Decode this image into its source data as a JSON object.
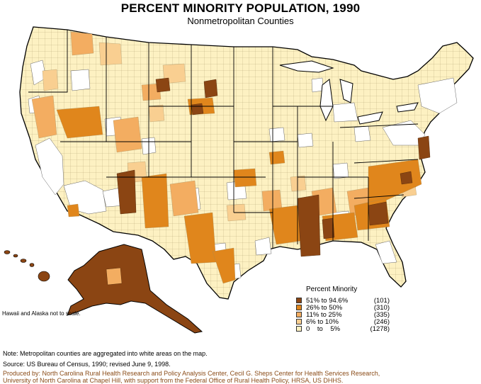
{
  "title": "PERCENT MINORITY POPULATION, 1990",
  "subtitle": "Nonmetropolitan Counties",
  "legend": {
    "title": "Percent Minority",
    "items": [
      {
        "range": "51% to 94.6%",
        "count": "(101)",
        "color": "#8b4513"
      },
      {
        "range": "26% to 50%",
        "count": "(310)",
        "color": "#e0861c"
      },
      {
        "range": "11% to 25%",
        "count": "(335)",
        "color": "#f3ad61"
      },
      {
        "range": "6% to 10%",
        "count": "(246)",
        "color": "#f9cf91"
      },
      {
        "range": "0    to    5%",
        "count": "(1278)",
        "color": "#fdf1c2"
      }
    ]
  },
  "inset_note": "Hawaii and Alaska not to scale.",
  "notes": {
    "metro": "Note: Metropolitan counties are aggregated into white areas on the map.",
    "source": "Source: US Bureau of Census, 1990; revised June 9, 1998.",
    "produced_line1": "Produced by: North Carolina Rural Health Research and Policy Analysis Center, Cecil G. Sheps Center for Health Services Research,",
    "produced_line2": "University of North Carolina at Chapel Hill, with support from the Federal Office of Rural Health Policy, HRSA, US DHHS."
  }
}
